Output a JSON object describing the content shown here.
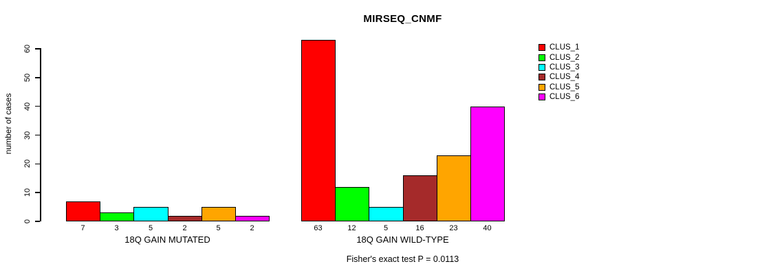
{
  "chart_data": {
    "type": "bar",
    "title": "MIRSEQ_CNMF",
    "ylabel": "number of cases",
    "xlabel": "",
    "ylim": [
      0,
      60
    ],
    "yticks": [
      0,
      10,
      20,
      30,
      40,
      50,
      60
    ],
    "grid": false,
    "legend_position": "top-right",
    "series": [
      {
        "name": "CLUS_1",
        "color": "#FF0000"
      },
      {
        "name": "CLUS_2",
        "color": "#00FF00"
      },
      {
        "name": "CLUS_3",
        "color": "#00FFFF"
      },
      {
        "name": "CLUS_4",
        "color": "#A52A2A"
      },
      {
        "name": "CLUS_5",
        "color": "#FFA500"
      },
      {
        "name": "CLUS_6",
        "color": "#FF00FF"
      }
    ],
    "groups": [
      {
        "label": "18Q GAIN MUTATED",
        "values": [
          7,
          3,
          5,
          2,
          5,
          2
        ]
      },
      {
        "label": "18Q GAIN WILD-TYPE",
        "values": [
          63,
          12,
          5,
          16,
          23,
          40
        ]
      }
    ],
    "caption": "Fisher's exact test P = 0.0113",
    "bar_edge_color": "#000000",
    "background_color": "#FFFFFF"
  }
}
